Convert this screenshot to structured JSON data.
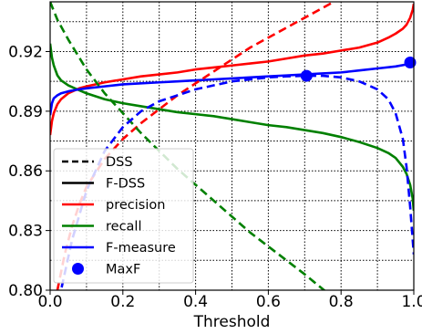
{
  "chart_data": {
    "type": "line",
    "title": "",
    "xlabel": "Threshold",
    "ylabel": "",
    "xlim": [
      0.0,
      1.0
    ],
    "ylim": [
      0.8,
      0.945
    ],
    "x_ticks": [
      "0.0",
      "0.2",
      "0.4",
      "0.6",
      "0.8",
      "1.0"
    ],
    "x_tick_values": [
      0.0,
      0.2,
      0.4,
      0.6,
      0.8,
      1.0
    ],
    "y_ticks": [
      "0.80",
      "0.83",
      "0.86",
      "0.89",
      "0.92"
    ],
    "y_tick_values": [
      0.8,
      0.83,
      0.86,
      0.89,
      0.92
    ],
    "grid": true,
    "grid_style": "dotted",
    "legend_placement": "bottom-left",
    "legend": [
      {
        "label": "DSS",
        "kind": "line",
        "color": "#000000",
        "dashed": true
      },
      {
        "label": "F-DSS",
        "kind": "line",
        "color": "#000000",
        "dashed": false
      },
      {
        "label": "precision",
        "kind": "line",
        "color": "#ff0000",
        "dashed": false
      },
      {
        "label": "recall",
        "kind": "line",
        "color": "#008000",
        "dashed": false
      },
      {
        "label": "F-measure",
        "kind": "line",
        "color": "#0000ff",
        "dashed": false
      },
      {
        "label": "MaxF",
        "kind": "marker",
        "color": "#0000ff",
        "dashed": false
      }
    ],
    "series": [
      {
        "group": "F-DSS",
        "metric": "precision",
        "color": "#ff0000",
        "dashed": false,
        "points": [
          [
            0.0,
            0.878
          ],
          [
            0.005,
            0.885
          ],
          [
            0.01,
            0.889
          ],
          [
            0.02,
            0.8935
          ],
          [
            0.03,
            0.896
          ],
          [
            0.05,
            0.899
          ],
          [
            0.08,
            0.9015
          ],
          [
            0.1,
            0.9025
          ],
          [
            0.15,
            0.9045
          ],
          [
            0.2,
            0.906
          ],
          [
            0.25,
            0.9075
          ],
          [
            0.3,
            0.9085
          ],
          [
            0.35,
            0.9095
          ],
          [
            0.4,
            0.911
          ],
          [
            0.45,
            0.912
          ],
          [
            0.5,
            0.913
          ],
          [
            0.55,
            0.914
          ],
          [
            0.6,
            0.915
          ],
          [
            0.65,
            0.9165
          ],
          [
            0.7,
            0.918
          ],
          [
            0.75,
            0.919
          ],
          [
            0.8,
            0.9205
          ],
          [
            0.85,
            0.922
          ],
          [
            0.9,
            0.9245
          ],
          [
            0.93,
            0.927
          ],
          [
            0.95,
            0.929
          ],
          [
            0.97,
            0.9315
          ],
          [
            0.98,
            0.9335
          ],
          [
            0.99,
            0.937
          ],
          [
            0.997,
            0.941
          ],
          [
            1.0,
            0.944
          ]
        ]
      },
      {
        "group": "F-DSS",
        "metric": "recall",
        "color": "#008000",
        "dashed": false,
        "points": [
          [
            0.0,
            0.924
          ],
          [
            0.005,
            0.917
          ],
          [
            0.01,
            0.913
          ],
          [
            0.02,
            0.908
          ],
          [
            0.03,
            0.9055
          ],
          [
            0.05,
            0.903
          ],
          [
            0.08,
            0.9005
          ],
          [
            0.1,
            0.899
          ],
          [
            0.15,
            0.896
          ],
          [
            0.2,
            0.894
          ],
          [
            0.25,
            0.8925
          ],
          [
            0.3,
            0.891
          ],
          [
            0.35,
            0.8895
          ],
          [
            0.4,
            0.8885
          ],
          [
            0.45,
            0.8875
          ],
          [
            0.5,
            0.886
          ],
          [
            0.55,
            0.8845
          ],
          [
            0.6,
            0.883
          ],
          [
            0.65,
            0.882
          ],
          [
            0.7,
            0.8805
          ],
          [
            0.75,
            0.879
          ],
          [
            0.8,
            0.877
          ],
          [
            0.85,
            0.8745
          ],
          [
            0.9,
            0.8715
          ],
          [
            0.93,
            0.869
          ],
          [
            0.95,
            0.8665
          ],
          [
            0.97,
            0.862
          ],
          [
            0.98,
            0.8585
          ],
          [
            0.99,
            0.853
          ],
          [
            0.997,
            0.846
          ],
          [
            1.0,
            0.84
          ]
        ]
      },
      {
        "group": "F-DSS",
        "metric": "F-measure",
        "color": "#0000ff",
        "dashed": false,
        "points": [
          [
            0.0,
            0.888
          ],
          [
            0.005,
            0.894
          ],
          [
            0.01,
            0.8965
          ],
          [
            0.02,
            0.898
          ],
          [
            0.03,
            0.899
          ],
          [
            0.05,
            0.9
          ],
          [
            0.08,
            0.901
          ],
          [
            0.1,
            0.9015
          ],
          [
            0.15,
            0.9025
          ],
          [
            0.2,
            0.9035
          ],
          [
            0.25,
            0.904
          ],
          [
            0.3,
            0.9045
          ],
          [
            0.35,
            0.905
          ],
          [
            0.4,
            0.9055
          ],
          [
            0.45,
            0.906
          ],
          [
            0.5,
            0.9065
          ],
          [
            0.55,
            0.907
          ],
          [
            0.6,
            0.9075
          ],
          [
            0.65,
            0.908
          ],
          [
            0.7,
            0.9085
          ],
          [
            0.75,
            0.909
          ],
          [
            0.8,
            0.9095
          ],
          [
            0.85,
            0.9105
          ],
          [
            0.9,
            0.9115
          ],
          [
            0.95,
            0.9125
          ],
          [
            0.98,
            0.9135
          ],
          [
            1.0,
            0.9145
          ]
        ]
      },
      {
        "group": "DSS",
        "metric": "precision",
        "color": "#ff0000",
        "dashed": true,
        "points": [
          [
            0.02,
            0.8
          ],
          [
            0.04,
            0.818
          ],
          [
            0.06,
            0.832
          ],
          [
            0.08,
            0.843
          ],
          [
            0.1,
            0.852
          ],
          [
            0.15,
            0.866
          ],
          [
            0.2,
            0.876
          ],
          [
            0.25,
            0.884
          ],
          [
            0.3,
            0.891
          ],
          [
            0.35,
            0.898
          ],
          [
            0.4,
            0.904
          ],
          [
            0.45,
            0.91
          ],
          [
            0.5,
            0.916
          ],
          [
            0.55,
            0.922
          ],
          [
            0.6,
            0.927
          ],
          [
            0.65,
            0.932
          ],
          [
            0.7,
            0.937
          ],
          [
            0.75,
            0.942
          ],
          [
            0.78,
            0.945
          ]
        ]
      },
      {
        "group": "DSS",
        "metric": "recall",
        "color": "#008000",
        "dashed": true,
        "points": [
          [
            0.0,
            0.945
          ],
          [
            0.02,
            0.936
          ],
          [
            0.05,
            0.926
          ],
          [
            0.08,
            0.917
          ],
          [
            0.1,
            0.911
          ],
          [
            0.15,
            0.899
          ],
          [
            0.2,
            0.889
          ],
          [
            0.25,
            0.879
          ],
          [
            0.3,
            0.87
          ],
          [
            0.35,
            0.861
          ],
          [
            0.4,
            0.853
          ],
          [
            0.45,
            0.845
          ],
          [
            0.5,
            0.837
          ],
          [
            0.55,
            0.829
          ],
          [
            0.6,
            0.822
          ],
          [
            0.65,
            0.815
          ],
          [
            0.7,
            0.808
          ],
          [
            0.74,
            0.802
          ],
          [
            0.76,
            0.799
          ]
        ]
      },
      {
        "group": "DSS",
        "metric": "F-measure",
        "color": "#0000ff",
        "dashed": true,
        "points": [
          [
            0.0,
            0.79
          ],
          [
            0.03,
            0.8
          ],
          [
            0.06,
            0.825
          ],
          [
            0.1,
            0.85
          ],
          [
            0.15,
            0.87
          ],
          [
            0.2,
            0.882
          ],
          [
            0.25,
            0.89
          ],
          [
            0.3,
            0.895
          ],
          [
            0.35,
            0.898
          ],
          [
            0.4,
            0.901
          ],
          [
            0.45,
            0.903
          ],
          [
            0.5,
            0.905
          ],
          [
            0.55,
            0.906
          ],
          [
            0.6,
            0.907
          ],
          [
            0.65,
            0.9075
          ],
          [
            0.7,
            0.9078
          ],
          [
            0.75,
            0.9078
          ],
          [
            0.8,
            0.907
          ],
          [
            0.85,
            0.905
          ],
          [
            0.9,
            0.901
          ],
          [
            0.93,
            0.896
          ],
          [
            0.95,
            0.889
          ],
          [
            0.97,
            0.876
          ],
          [
            0.98,
            0.862
          ],
          [
            0.99,
            0.842
          ],
          [
            1.0,
            0.818
          ]
        ]
      }
    ],
    "markers": [
      {
        "label": "MaxF",
        "x": 0.705,
        "y": 0.9078,
        "color": "#0000ff"
      },
      {
        "label": "MaxF",
        "x": 0.99,
        "y": 0.9145,
        "color": "#0000ff"
      }
    ]
  }
}
